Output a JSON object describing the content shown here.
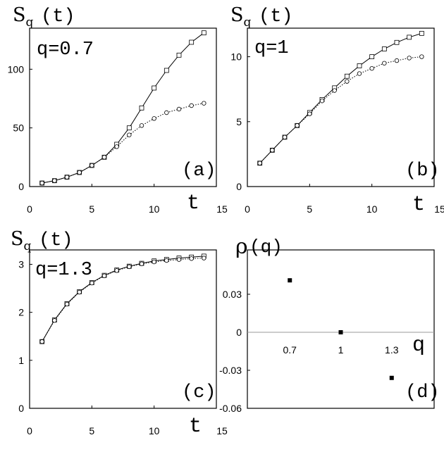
{
  "chart_data": [
    {
      "id": "a",
      "type": "line",
      "ylabel_main": "S",
      "ylabel_sub": "q",
      "ylabel_arg": "(t)",
      "xlabel": "t",
      "annotation": "q=0.7",
      "panel_label": "(a)",
      "xlim": [
        0,
        15
      ],
      "ylim": [
        0,
        135
      ],
      "xticks": [
        "0",
        "5",
        "10",
        "15"
      ],
      "xtick_values": [
        0,
        5,
        10,
        15
      ],
      "yticks": [
        "0",
        "50",
        "100"
      ],
      "ytick_values": [
        0,
        50,
        100
      ],
      "x": [
        1,
        2,
        3,
        4,
        5,
        6,
        7,
        8,
        9,
        10,
        11,
        12,
        13,
        14
      ],
      "series": [
        {
          "marker": "square",
          "line": "solid",
          "values": [
            3,
            5,
            8,
            12,
            18,
            25,
            36,
            50,
            67,
            84,
            99,
            112,
            123,
            131
          ]
        },
        {
          "marker": "diamond",
          "line": "dotted",
          "values": [
            3,
            5,
            8,
            12,
            18,
            25,
            34,
            44,
            52,
            58,
            63,
            66,
            69,
            71
          ]
        }
      ]
    },
    {
      "id": "b",
      "type": "line",
      "ylabel_main": "S",
      "ylabel_sub": "q",
      "ylabel_arg": "(t)",
      "xlabel": "t",
      "annotation": "q=1",
      "panel_label": "(b)",
      "xlim": [
        0,
        15
      ],
      "ylim": [
        0,
        12.2
      ],
      "xticks": [
        "0",
        "5",
        "10",
        "15"
      ],
      "xtick_values": [
        0,
        5,
        10,
        15
      ],
      "yticks": [
        "0",
        "5",
        "10"
      ],
      "ytick_values": [
        0,
        5,
        10
      ],
      "x": [
        1,
        2,
        3,
        4,
        5,
        6,
        7,
        8,
        9,
        10,
        11,
        12,
        13,
        14
      ],
      "series": [
        {
          "marker": "square",
          "line": "solid",
          "values": [
            1.8,
            2.8,
            3.8,
            4.7,
            5.7,
            6.7,
            7.6,
            8.5,
            9.3,
            10.0,
            10.6,
            11.1,
            11.5,
            11.8
          ]
        },
        {
          "marker": "diamond",
          "line": "dotted",
          "values": [
            1.8,
            2.8,
            3.8,
            4.7,
            5.6,
            6.6,
            7.4,
            8.1,
            8.7,
            9.1,
            9.5,
            9.7,
            9.9,
            10.0
          ]
        }
      ]
    },
    {
      "id": "c",
      "type": "line",
      "ylabel_main": "S",
      "ylabel_sub": "q",
      "ylabel_arg": "(t)",
      "xlabel": "t",
      "annotation": "q=1.3",
      "panel_label": "(c)",
      "xlim": [
        0,
        15
      ],
      "ylim": [
        0,
        3.3
      ],
      "xticks": [
        "0",
        "5",
        "10",
        "15"
      ],
      "xtick_values": [
        0,
        5,
        10,
        15
      ],
      "yticks": [
        "0",
        "1",
        "2",
        "3"
      ],
      "ytick_values": [
        0,
        1,
        2,
        3
      ],
      "x": [
        1,
        2,
        3,
        4,
        5,
        6,
        7,
        8,
        9,
        10,
        11,
        12,
        13,
        14
      ],
      "series": [
        {
          "marker": "square",
          "line": "solid",
          "values": [
            1.39,
            1.84,
            2.18,
            2.43,
            2.62,
            2.77,
            2.88,
            2.96,
            3.02,
            3.07,
            3.1,
            3.13,
            3.15,
            3.17
          ]
        },
        {
          "marker": "diamond",
          "line": "dotted",
          "values": [
            1.39,
            1.83,
            2.17,
            2.42,
            2.61,
            2.76,
            2.87,
            2.95,
            3.01,
            3.05,
            3.08,
            3.1,
            3.12,
            3.13
          ]
        }
      ]
    },
    {
      "id": "d",
      "type": "scatter",
      "ylabel_main": "ρ",
      "ylabel_arg": "(q)",
      "xlabel": "q",
      "panel_label": "(d)",
      "ylim": [
        -0.06,
        0.065
      ],
      "xticks": [
        "0.7",
        "1",
        "1.3"
      ],
      "xtick_values": [
        0.7,
        1.0,
        1.3
      ],
      "xlim": [
        0.45,
        1.55
      ],
      "yticks": [
        "0.03",
        "0",
        "-0.03",
        "-0.06"
      ],
      "ytick_values": [
        0.03,
        0,
        -0.03,
        -0.06
      ],
      "x": [
        0.7,
        1.0,
        1.3
      ],
      "values": [
        0.041,
        0.0,
        -0.036
      ]
    }
  ]
}
